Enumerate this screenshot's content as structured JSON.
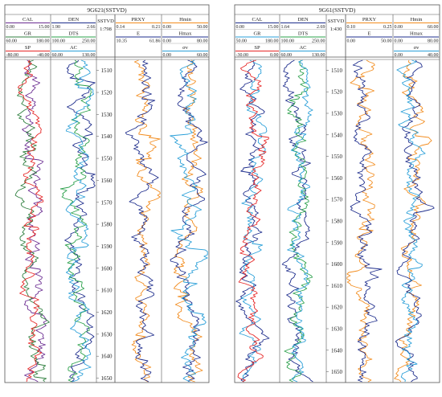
{
  "chart_data": [
    {
      "type": "line",
      "title": "9G621(SSTVD)",
      "depth_axis": {
        "label": "SSTVD",
        "top_value": "1:798",
        "range": [
          1505,
          1652
        ],
        "ticks": [
          1510,
          1520,
          1530,
          1540,
          1550,
          1560,
          1570,
          1580,
          1590,
          1600,
          1610,
          1620,
          1630,
          1640,
          1650
        ]
      },
      "tracks": [
        {
          "curves": [
            {
              "name": "CAL",
              "color": "#6a2c91",
              "min": "0.00",
              "max": "15.00"
            },
            {
              "name": "GR",
              "color": "#2f7f3f",
              "min": "60.00",
              "max": "180.00"
            },
            {
              "name": "SP",
              "color": "#e62626",
              "min": "-80.00",
              "max": "-40.00"
            }
          ]
        },
        {
          "curves": [
            {
              "name": "DEN",
              "color": "#1e2d8c",
              "min": "1.90",
              "max": "2.66"
            },
            {
              "name": "DTS",
              "color": "#2aa04a",
              "min": "100.00",
              "max": "250.00"
            },
            {
              "name": "AC",
              "color": "#2a9fd8",
              "min": "60.00",
              "max": "130.00"
            }
          ]
        },
        {
          "curves": [
            {
              "name": "PRXY",
              "color": "#f28c1e",
              "min": "0.14",
              "max": "0.21"
            },
            {
              "name": "E",
              "color": "#1e2d8c",
              "min": "10.35",
              "max": "61.86"
            }
          ]
        },
        {
          "curves": [
            {
              "name": "Hmin",
              "color": "#f28c1e",
              "min": "0.00",
              "max": "50.00"
            },
            {
              "name": "Hmax",
              "color": "#1e2d8c",
              "min": "0.00",
              "max": "80.00"
            },
            {
              "name": "σv",
              "color": "#2a9fd8",
              "min": "0.00",
              "max": "60.00"
            }
          ]
        }
      ]
    },
    {
      "type": "line",
      "title": "9G61(SSTVD)",
      "depth_axis": {
        "label": "SSTVD",
        "top_value": "1:430",
        "range": [
          1505,
          1655
        ],
        "ticks": [
          1510,
          1520,
          1530,
          1540,
          1550,
          1560,
          1570,
          1580,
          1590,
          1600,
          1610,
          1620,
          1630,
          1640,
          1650
        ]
      },
      "tracks": [
        {
          "curves": [
            {
              "name": "CAL",
              "color": "#1e2d8c",
              "min": "0.00",
              "max": "15.00"
            },
            {
              "name": "GR",
              "color": "#2a9fd8",
              "min": "50.00",
              "max": "180.00"
            },
            {
              "name": "SP",
              "color": "#e62626",
              "min": "-30.00",
              "max": "0.00"
            }
          ]
        },
        {
          "curves": [
            {
              "name": "DEN",
              "color": "#1e2d8c",
              "min": "1.64",
              "max": "2.69"
            },
            {
              "name": "DTS",
              "color": "#2aa04a",
              "min": "100.00",
              "max": "250.00"
            },
            {
              "name": "AC",
              "color": "#2a9fd8",
              "min": "60.00",
              "max": "130.00"
            }
          ]
        },
        {
          "curves": [
            {
              "name": "PRXY",
              "color": "#f28c1e",
              "min": "0.10",
              "max": "0.25"
            },
            {
              "name": "E",
              "color": "#1e2d8c",
              "min": "0.00",
              "max": "50.00"
            }
          ]
        },
        {
          "curves": [
            {
              "name": "Hmin",
              "color": "#f28c1e",
              "min": "0.00",
              "max": "60.00"
            },
            {
              "name": "Hmax",
              "color": "#1e2d8c",
              "min": "0.00",
              "max": "80.00"
            },
            {
              "name": "σv",
              "color": "#2a9fd8",
              "min": "0.00",
              "max": "40.00"
            }
          ]
        }
      ]
    }
  ]
}
